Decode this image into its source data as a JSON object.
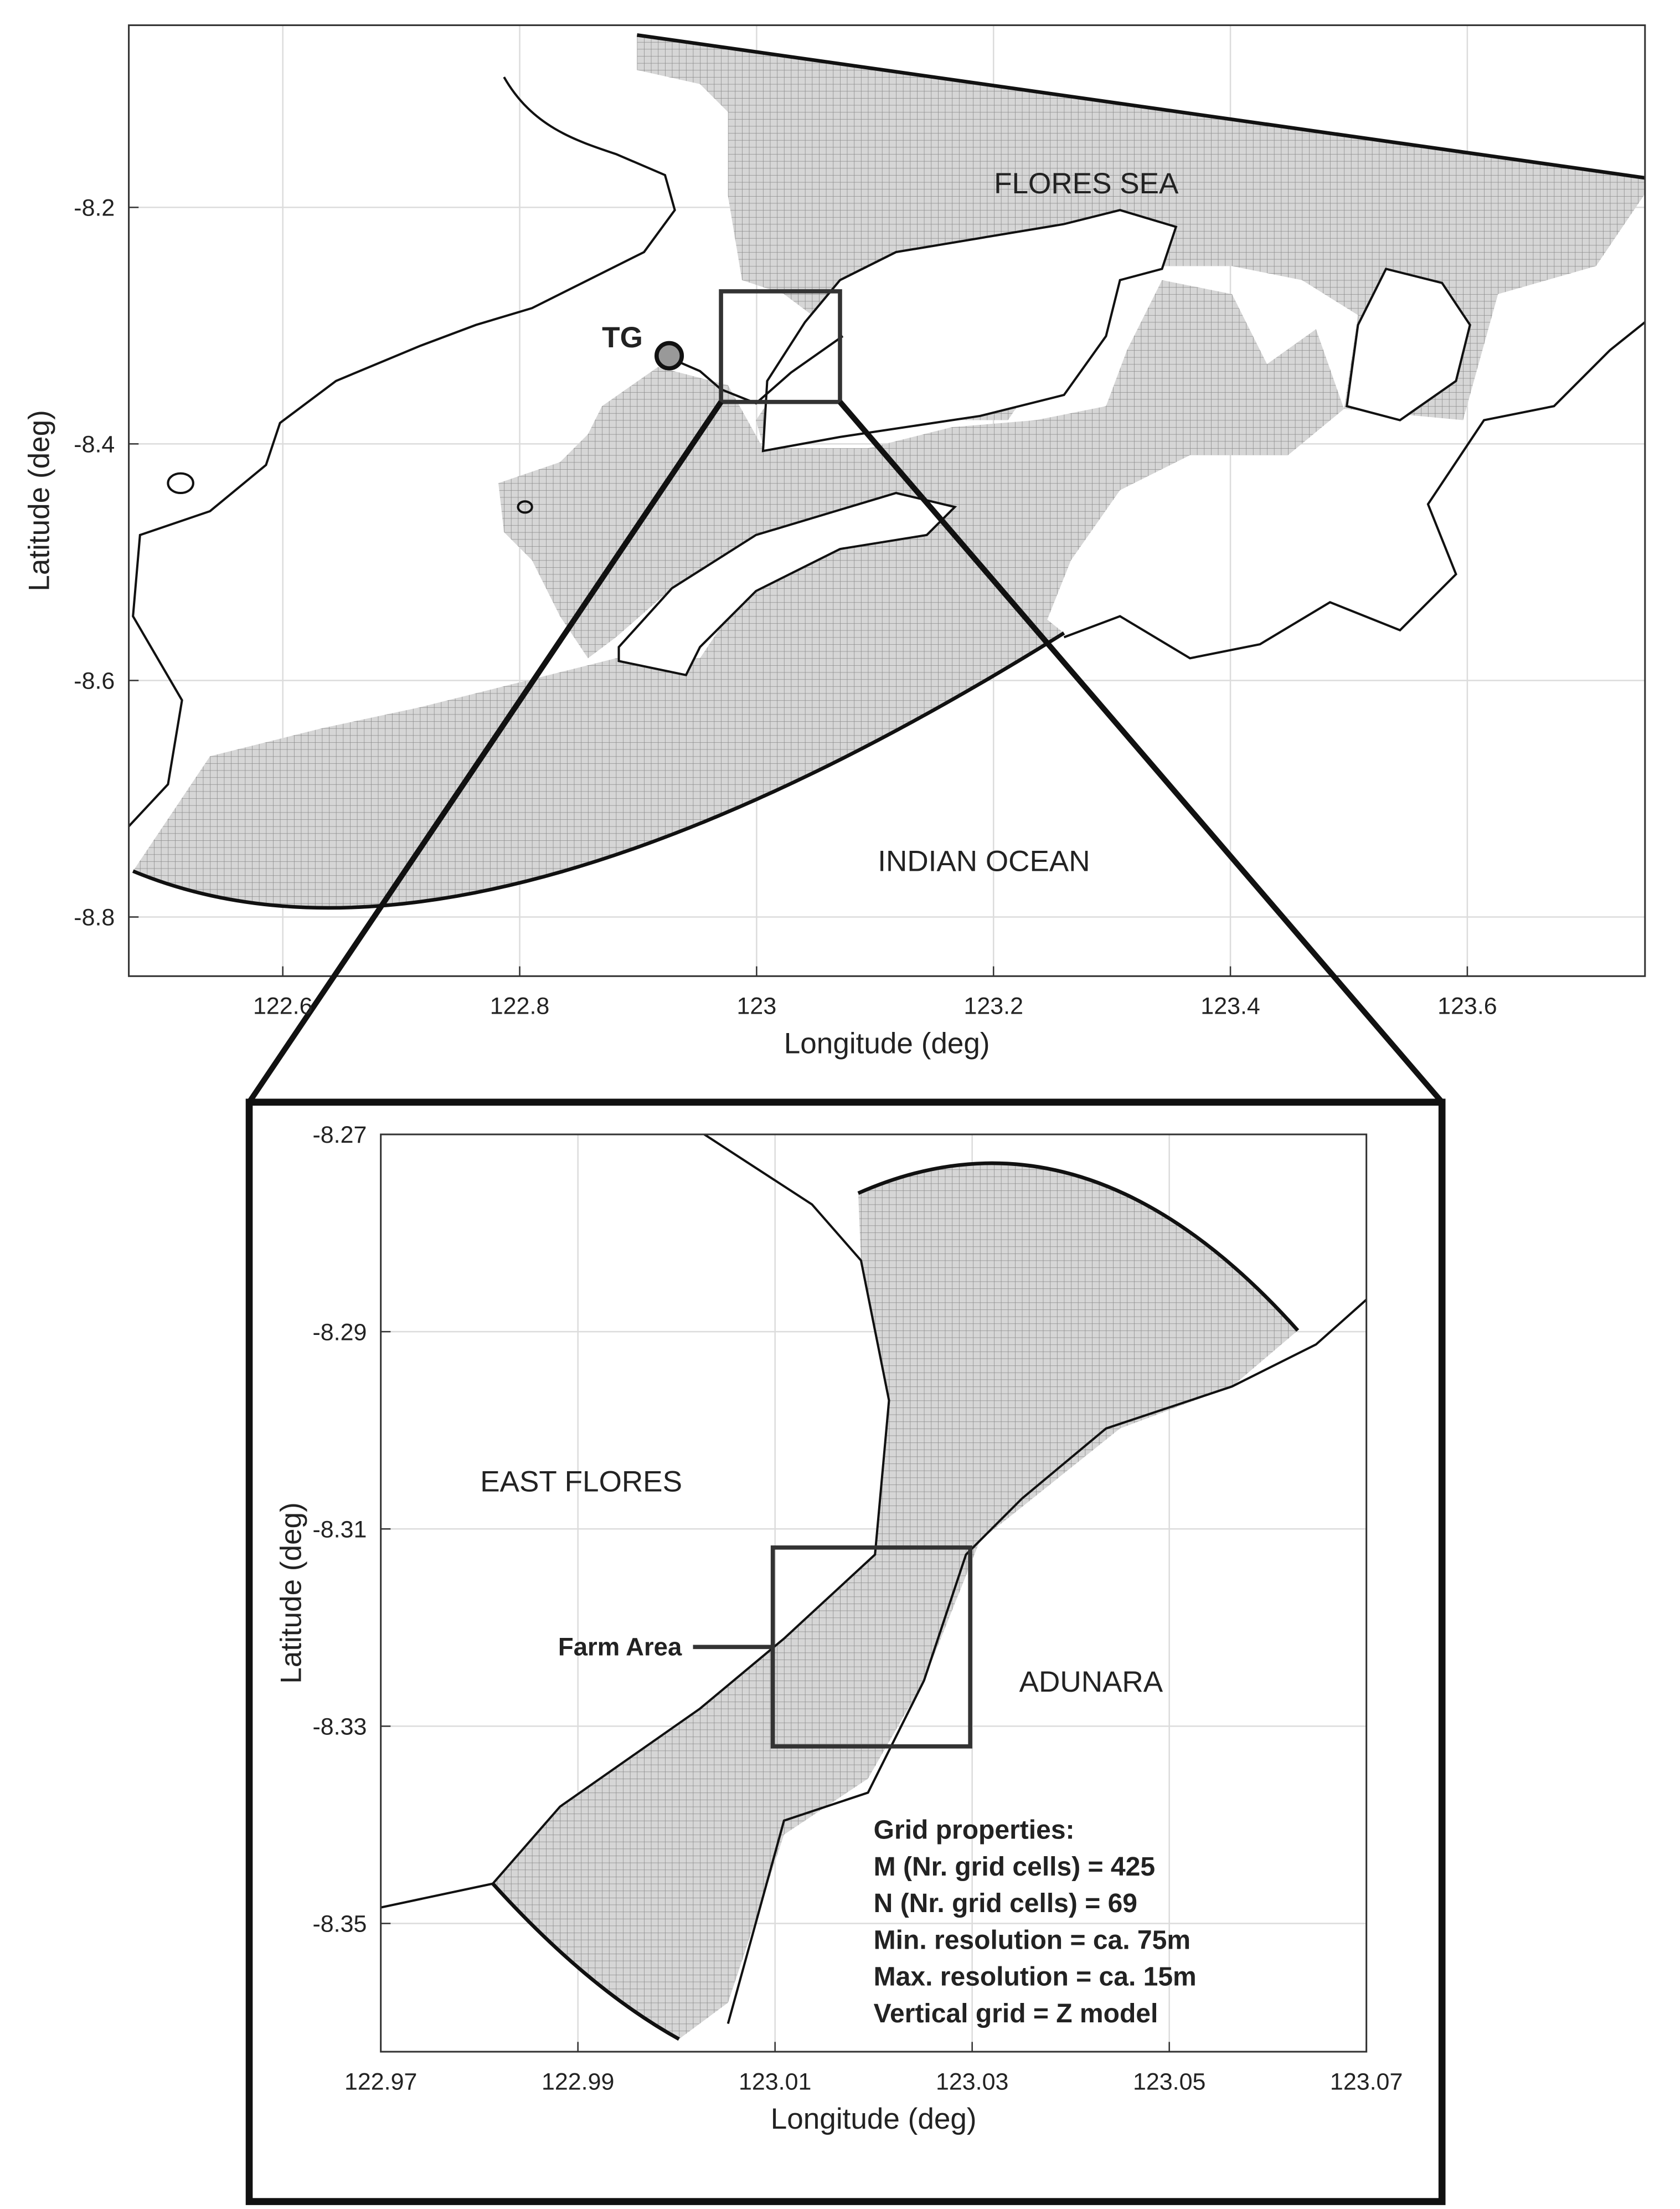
{
  "panels": [
    {
      "xlabel": "Longitude (deg)",
      "ylabel": "Latitude (deg)",
      "xlim": [
        122.47,
        123.75
      ],
      "ylim": [
        -8.85,
        -8.046
      ],
      "xticks": [
        122.6,
        122.8,
        123,
        123.2,
        123.4,
        123.6
      ],
      "yticks": [
        -8.8,
        -8.6,
        -8.4,
        -8.2
      ],
      "labels": [
        "FLORES SEA",
        "INDIAN OCEAN",
        "TG"
      ]
    },
    {
      "xlabel": "Longitude (deg)",
      "ylabel": "Latitude (deg)",
      "xlim": [
        122.97,
        123.07
      ],
      "ylim": [
        -8.363,
        -8.27
      ],
      "xticks": [
        122.97,
        122.99,
        123.01,
        123.03,
        123.05,
        123.07
      ],
      "yticks": [
        -8.35,
        -8.33,
        -8.31,
        -8.29,
        -8.27
      ],
      "labels": [
        "EAST FLORES",
        "ADUNARA",
        "Farm Area"
      ],
      "grid_properties": [
        "Grid properties:",
        "M (Nr. grid cells) = 425",
        "N (Nr. grid cells) = 69",
        "Min. resolution = ca. 75m",
        "Max. resolution = ca. 15m",
        "Vertical grid = Z model"
      ]
    }
  ]
}
